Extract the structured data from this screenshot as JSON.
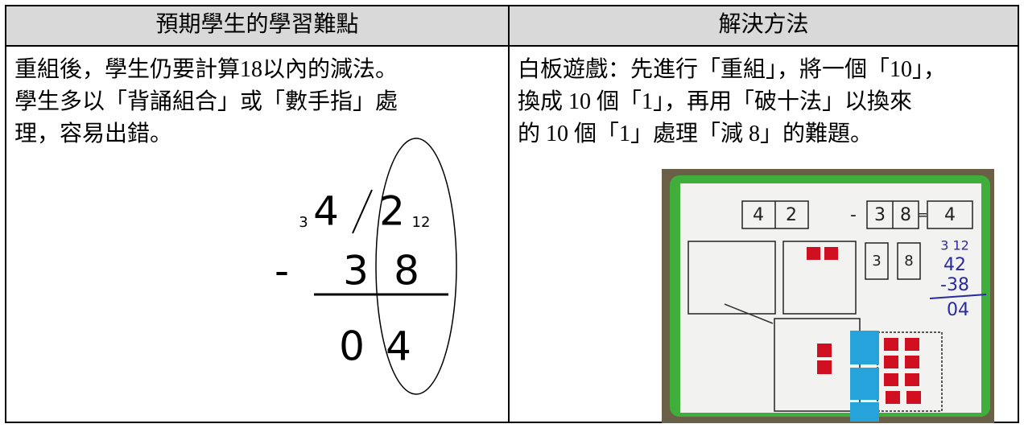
{
  "table": {
    "header": [
      "預期學生的學習難點",
      "解決方法"
    ],
    "left": {
      "lines": [
        "重組後，學生仍要計算18以內的減法。",
        "學生多以「背誦組合」或「數手指」處",
        "理，容易出錯。"
      ],
      "figure": {
        "borrow_tens": "3",
        "tens": "4",
        "ones": "2",
        "borrow_ones": "12",
        "minus": "-",
        "sub_tens": "3",
        "sub_ones": "8",
        "ans_tens": "0",
        "ans_ones": "4"
      }
    },
    "right": {
      "lines": [
        "白板遊戲：先進行「重組」，將一個「10」，",
        "換成 10 個「1」，再用「破十法」以換來",
        "的 10 個「1」處理「減 8」的難題。"
      ],
      "photo": {
        "eq": [
          "4",
          "2",
          "-",
          "3",
          "8",
          "=",
          "4"
        ],
        "box_a": "3",
        "box_b": "8",
        "hand": [
          "3 12",
          "42",
          "-38",
          "04"
        ]
      }
    }
  }
}
